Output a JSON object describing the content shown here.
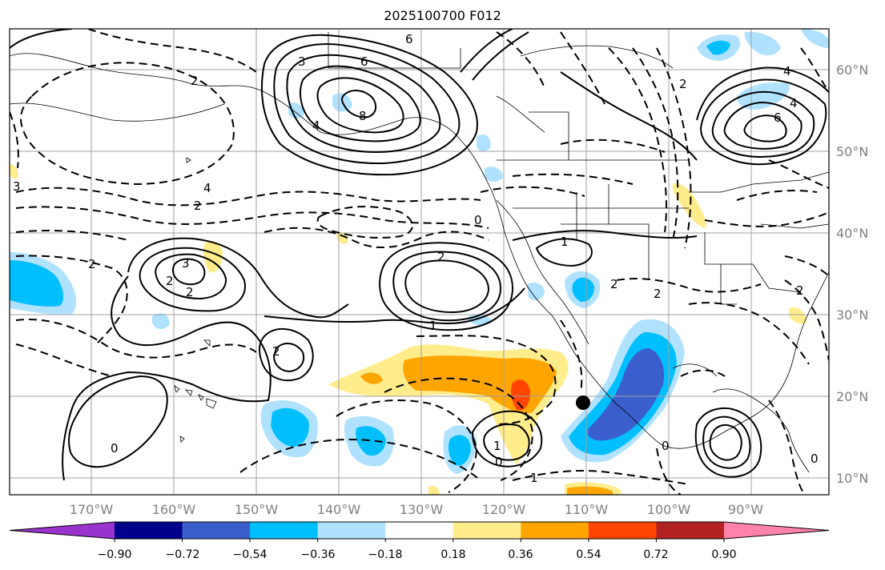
{
  "title": "2025100700 F012",
  "lat_labels": [
    "60°N",
    "50°N",
    "40°N",
    "30°N",
    "20°N",
    "10°N"
  ],
  "lon_labels": [
    "170°W",
    "160°W",
    "150°W",
    "140°W",
    "130°W",
    "120°W",
    "110°W",
    "100°W",
    "90°W"
  ],
  "colorbar": {
    "ticks": [
      "−0.90",
      "−0.72",
      "−0.54",
      "−0.36",
      "−0.18",
      "0.18",
      "0.36",
      "0.54",
      "0.72",
      "0.90"
    ],
    "colors": [
      "#9a32cd",
      "#00008b",
      "#3a5fcd",
      "#00bfff",
      "#b0e2ff",
      "#ffffff",
      "#ffec8b",
      "#ffa500",
      "#ff4500",
      "#b22222",
      "#ff82ab"
    ]
  },
  "contour_labels": [
    {
      "text": "3"
    },
    {
      "text": "6"
    },
    {
      "text": "8"
    },
    {
      "text": "4"
    },
    {
      "text": "6"
    },
    {
      "text": "2"
    },
    {
      "text": "3"
    },
    {
      "text": "4"
    },
    {
      "text": "2"
    },
    {
      "text": "2"
    },
    {
      "text": "3"
    },
    {
      "text": "2"
    },
    {
      "text": "2"
    },
    {
      "text": "1"
    },
    {
      "text": "2"
    },
    {
      "text": "0"
    },
    {
      "text": "1"
    },
    {
      "text": "2"
    },
    {
      "text": "1"
    },
    {
      "text": "2"
    },
    {
      "text": "0"
    },
    {
      "text": "1"
    },
    {
      "text": "0"
    },
    {
      "text": "6"
    },
    {
      "text": "4"
    },
    {
      "text": "2"
    },
    {
      "text": "4"
    },
    {
      "text": "2"
    },
    {
      "text": "0"
    },
    {
      "text": "2"
    },
    {
      "text": "0"
    }
  ]
}
